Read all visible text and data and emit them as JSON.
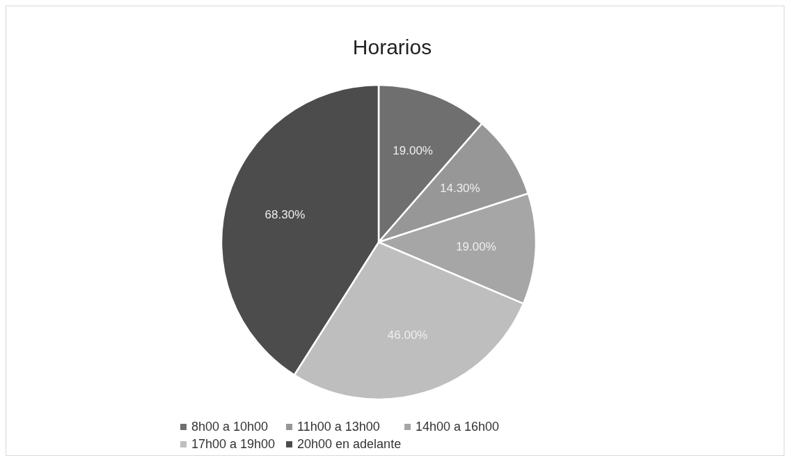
{
  "chart_data": {
    "type": "pie",
    "title": "Horarios",
    "categories": [
      "8h00 a 10h00",
      "11h00 a 13h00",
      "14h00 a 16h00",
      "17h00 a 19h00",
      "20h00 en adelante"
    ],
    "values": [
      19,
      14.3,
      19,
      46,
      68.3
    ],
    "value_labels": [
      "19.00%",
      "14.30%",
      "19.00%",
      "46.00%",
      "68.30%"
    ],
    "colors": [
      "#6f6f6f",
      "#979797",
      "#a6a6a6",
      "#bebebe",
      "#4c4c4c"
    ],
    "legend": "bottom"
  }
}
